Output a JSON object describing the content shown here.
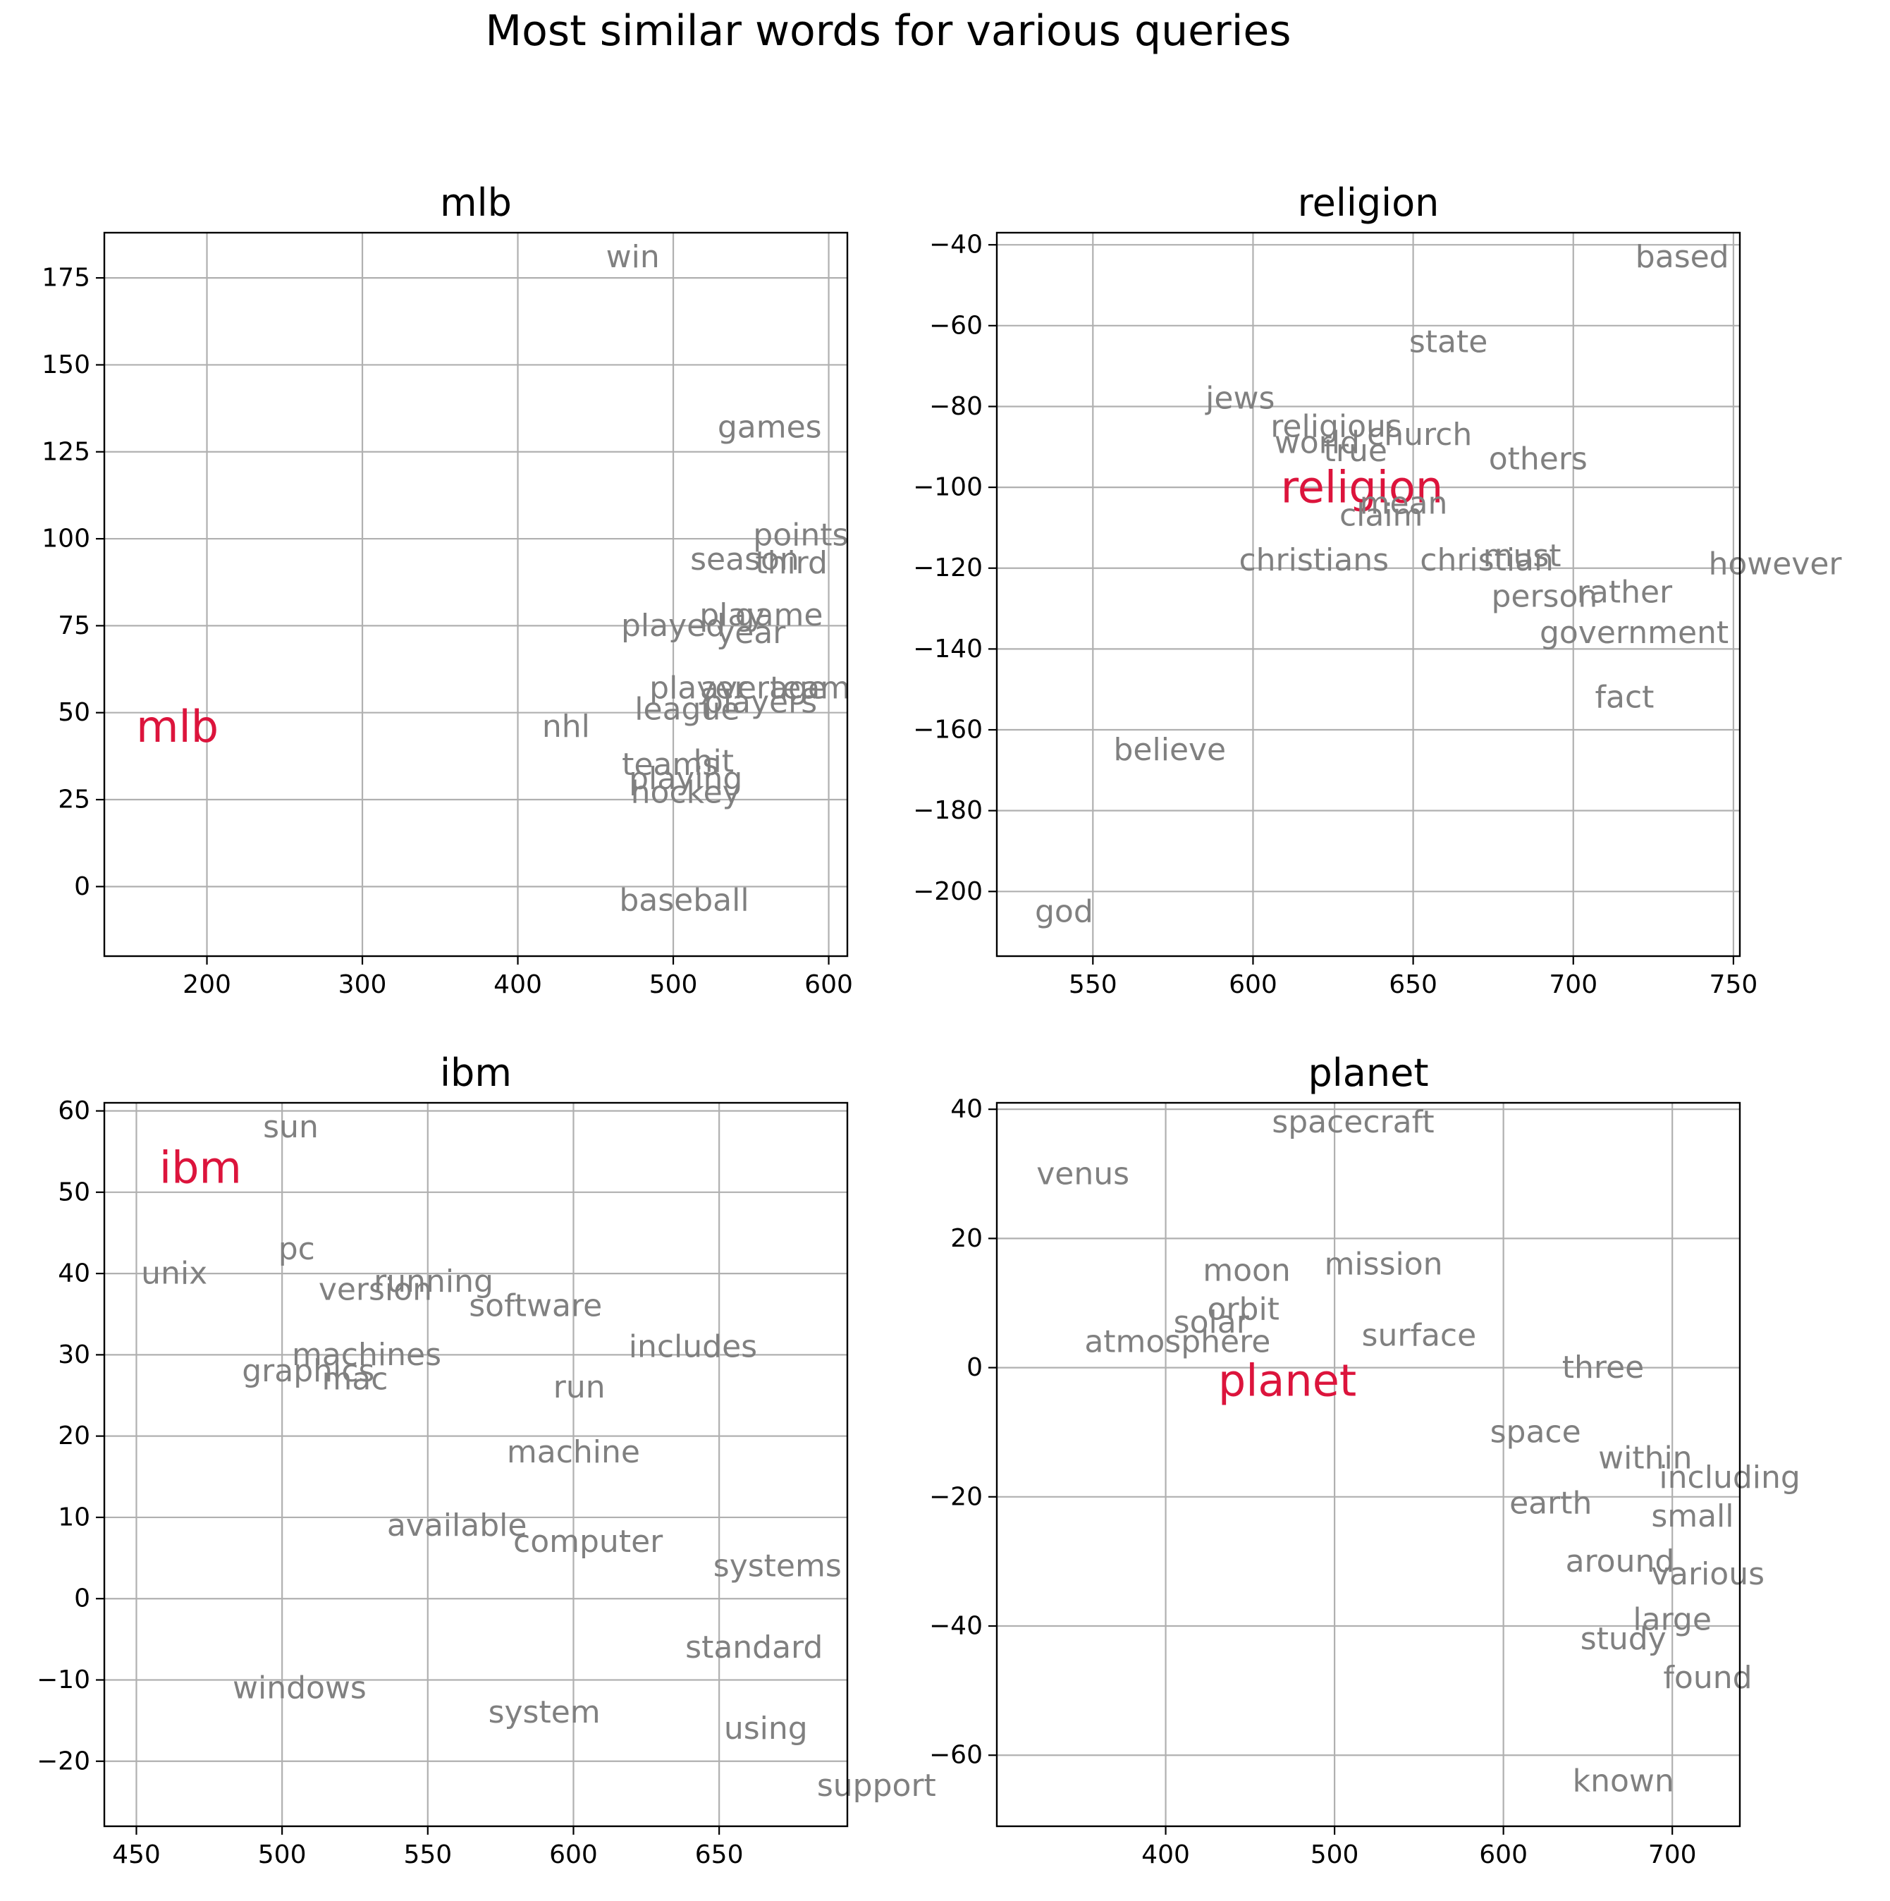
{
  "figure_title": "Most similar words for various queries",
  "colors": {
    "query": "#dc143c",
    "neighbor": "#808080",
    "grid": "#b0b0b0",
    "axis": "#000000"
  },
  "chart_data": [
    {
      "type": "scatter",
      "title": "mlb",
      "query": "mlb",
      "xlim": [
        134,
        612
      ],
      "ylim": [
        -20,
        188
      ],
      "xticks": [
        200,
        300,
        400,
        500,
        600
      ],
      "yticks": [
        0,
        25,
        50,
        75,
        100,
        125,
        150,
        175
      ],
      "grid": true,
      "points": [
        {
          "label": "mlb",
          "x": 181,
          "y": 46,
          "query": true
        },
        {
          "label": "win",
          "x": 474,
          "y": 181
        },
        {
          "label": "games",
          "x": 562,
          "y": 132
        },
        {
          "label": "points",
          "x": 582,
          "y": 101
        },
        {
          "label": "season",
          "x": 546,
          "y": 94
        },
        {
          "label": "third",
          "x": 576,
          "y": 93
        },
        {
          "label": "played",
          "x": 500,
          "y": 75
        },
        {
          "label": "play",
          "x": 538,
          "y": 78
        },
        {
          "label": "game",
          "x": 568,
          "y": 78
        },
        {
          "label": "year",
          "x": 550,
          "y": 73
        },
        {
          "label": "player",
          "x": 516,
          "y": 57
        },
        {
          "label": "average",
          "x": 558,
          "y": 57
        },
        {
          "label": "team",
          "x": 588,
          "y": 57
        },
        {
          "label": "league",
          "x": 509,
          "y": 51
        },
        {
          "label": "players",
          "x": 556,
          "y": 53
        },
        {
          "label": "nhl",
          "x": 431,
          "y": 46
        },
        {
          "label": "teams",
          "x": 498,
          "y": 35
        },
        {
          "label": "hit",
          "x": 526,
          "y": 36
        },
        {
          "label": "playing",
          "x": 508,
          "y": 31
        },
        {
          "label": "hockey",
          "x": 508,
          "y": 27
        },
        {
          "label": "baseball",
          "x": 507,
          "y": -4
        }
      ]
    },
    {
      "type": "scatter",
      "title": "religion",
      "query": "religion",
      "xlim": [
        520,
        752
      ],
      "ylim": [
        -216,
        -37
      ],
      "xticks": [
        550,
        600,
        650,
        700,
        750
      ],
      "yticks": [
        -200,
        -180,
        -160,
        -140,
        -120,
        -100,
        -80,
        -60,
        -40
      ],
      "grid": true,
      "points": [
        {
          "label": "religion",
          "x": 634,
          "y": -100,
          "query": true
        },
        {
          "label": "based",
          "x": 734,
          "y": -43
        },
        {
          "label": "state",
          "x": 661,
          "y": -64
        },
        {
          "label": "jews",
          "x": 596,
          "y": -78
        },
        {
          "label": "religious",
          "x": 626,
          "y": -85
        },
        {
          "label": "church",
          "x": 652,
          "y": -87
        },
        {
          "label": "world",
          "x": 620,
          "y": -89
        },
        {
          "label": "true",
          "x": 632,
          "y": -91
        },
        {
          "label": "others",
          "x": 689,
          "y": -93
        },
        {
          "label": "mean",
          "x": 647,
          "y": -104
        },
        {
          "label": "claim",
          "x": 640,
          "y": -107
        },
        {
          "label": "christians",
          "x": 619,
          "y": -118
        },
        {
          "label": "christian",
          "x": 673,
          "y": -118
        },
        {
          "label": "must",
          "x": 684,
          "y": -117
        },
        {
          "label": "however",
          "x": 763,
          "y": -119
        },
        {
          "label": "rather",
          "x": 716,
          "y": -126
        },
        {
          "label": "person",
          "x": 691,
          "y": -127
        },
        {
          "label": "government",
          "x": 719,
          "y": -136
        },
        {
          "label": "fact",
          "x": 716,
          "y": -152
        },
        {
          "label": "believe",
          "x": 574,
          "y": -165
        },
        {
          "label": "god",
          "x": 541,
          "y": -205
        }
      ]
    },
    {
      "type": "scatter",
      "title": "ibm",
      "query": "ibm",
      "xlim": [
        439,
        694
      ],
      "ylim": [
        -28,
        61
      ],
      "xticks": [
        450,
        500,
        550,
        600,
        650
      ],
      "yticks": [
        -20,
        -10,
        0,
        10,
        20,
        30,
        40,
        50,
        60
      ],
      "grid": true,
      "points": [
        {
          "label": "ibm",
          "x": 472,
          "y": 53,
          "query": true
        },
        {
          "label": "sun",
          "x": 503,
          "y": 58
        },
        {
          "label": "pc",
          "x": 505,
          "y": 43
        },
        {
          "label": "unix",
          "x": 463,
          "y": 40
        },
        {
          "label": "version",
          "x": 532,
          "y": 38
        },
        {
          "label": "running",
          "x": 552,
          "y": 39
        },
        {
          "label": "software",
          "x": 587,
          "y": 36
        },
        {
          "label": "includes",
          "x": 641,
          "y": 31
        },
        {
          "label": "machines",
          "x": 529,
          "y": 30
        },
        {
          "label": "graphics",
          "x": 509,
          "y": 28
        },
        {
          "label": "mac",
          "x": 525,
          "y": 27
        },
        {
          "label": "run",
          "x": 602,
          "y": 26
        },
        {
          "label": "machine",
          "x": 600,
          "y": 18
        },
        {
          "label": "available",
          "x": 560,
          "y": 9
        },
        {
          "label": "computer",
          "x": 605,
          "y": 7
        },
        {
          "label": "systems",
          "x": 670,
          "y": 4
        },
        {
          "label": "standard",
          "x": 662,
          "y": -6
        },
        {
          "label": "windows",
          "x": 506,
          "y": -11
        },
        {
          "label": "system",
          "x": 590,
          "y": -14
        },
        {
          "label": "using",
          "x": 666,
          "y": -16
        },
        {
          "label": "support",
          "x": 704,
          "y": -23
        }
      ]
    },
    {
      "type": "scatter",
      "title": "planet",
      "query": "planet",
      "xlim": [
        300,
        740
      ],
      "ylim": [
        -71,
        41
      ],
      "xticks": [
        400,
        500,
        600,
        700
      ],
      "yticks": [
        -60,
        -40,
        -20,
        0,
        20,
        40
      ],
      "grid": true,
      "points": [
        {
          "label": "planet",
          "x": 472,
          "y": -2,
          "query": true
        },
        {
          "label": "spacecraft",
          "x": 511,
          "y": 38
        },
        {
          "label": "venus",
          "x": 351,
          "y": 30
        },
        {
          "label": "mission",
          "x": 529,
          "y": 16
        },
        {
          "label": "moon",
          "x": 448,
          "y": 15
        },
        {
          "label": "orbit",
          "x": 446,
          "y": 9
        },
        {
          "label": "solar",
          "x": 427,
          "y": 7
        },
        {
          "label": "surface",
          "x": 550,
          "y": 5
        },
        {
          "label": "atmosphere",
          "x": 407,
          "y": 4
        },
        {
          "label": "three",
          "x": 659,
          "y": 0
        },
        {
          "label": "space",
          "x": 619,
          "y": -10
        },
        {
          "label": "within",
          "x": 684,
          "y": -14
        },
        {
          "label": "including",
          "x": 734,
          "y": -17
        },
        {
          "label": "earth",
          "x": 628,
          "y": -21
        },
        {
          "label": "small",
          "x": 712,
          "y": -23
        },
        {
          "label": "around",
          "x": 669,
          "y": -30
        },
        {
          "label": "various",
          "x": 721,
          "y": -32
        },
        {
          "label": "large",
          "x": 700,
          "y": -39
        },
        {
          "label": "study",
          "x": 671,
          "y": -42
        },
        {
          "label": "found",
          "x": 721,
          "y": -48
        },
        {
          "label": "known",
          "x": 671,
          "y": -64
        }
      ]
    }
  ]
}
